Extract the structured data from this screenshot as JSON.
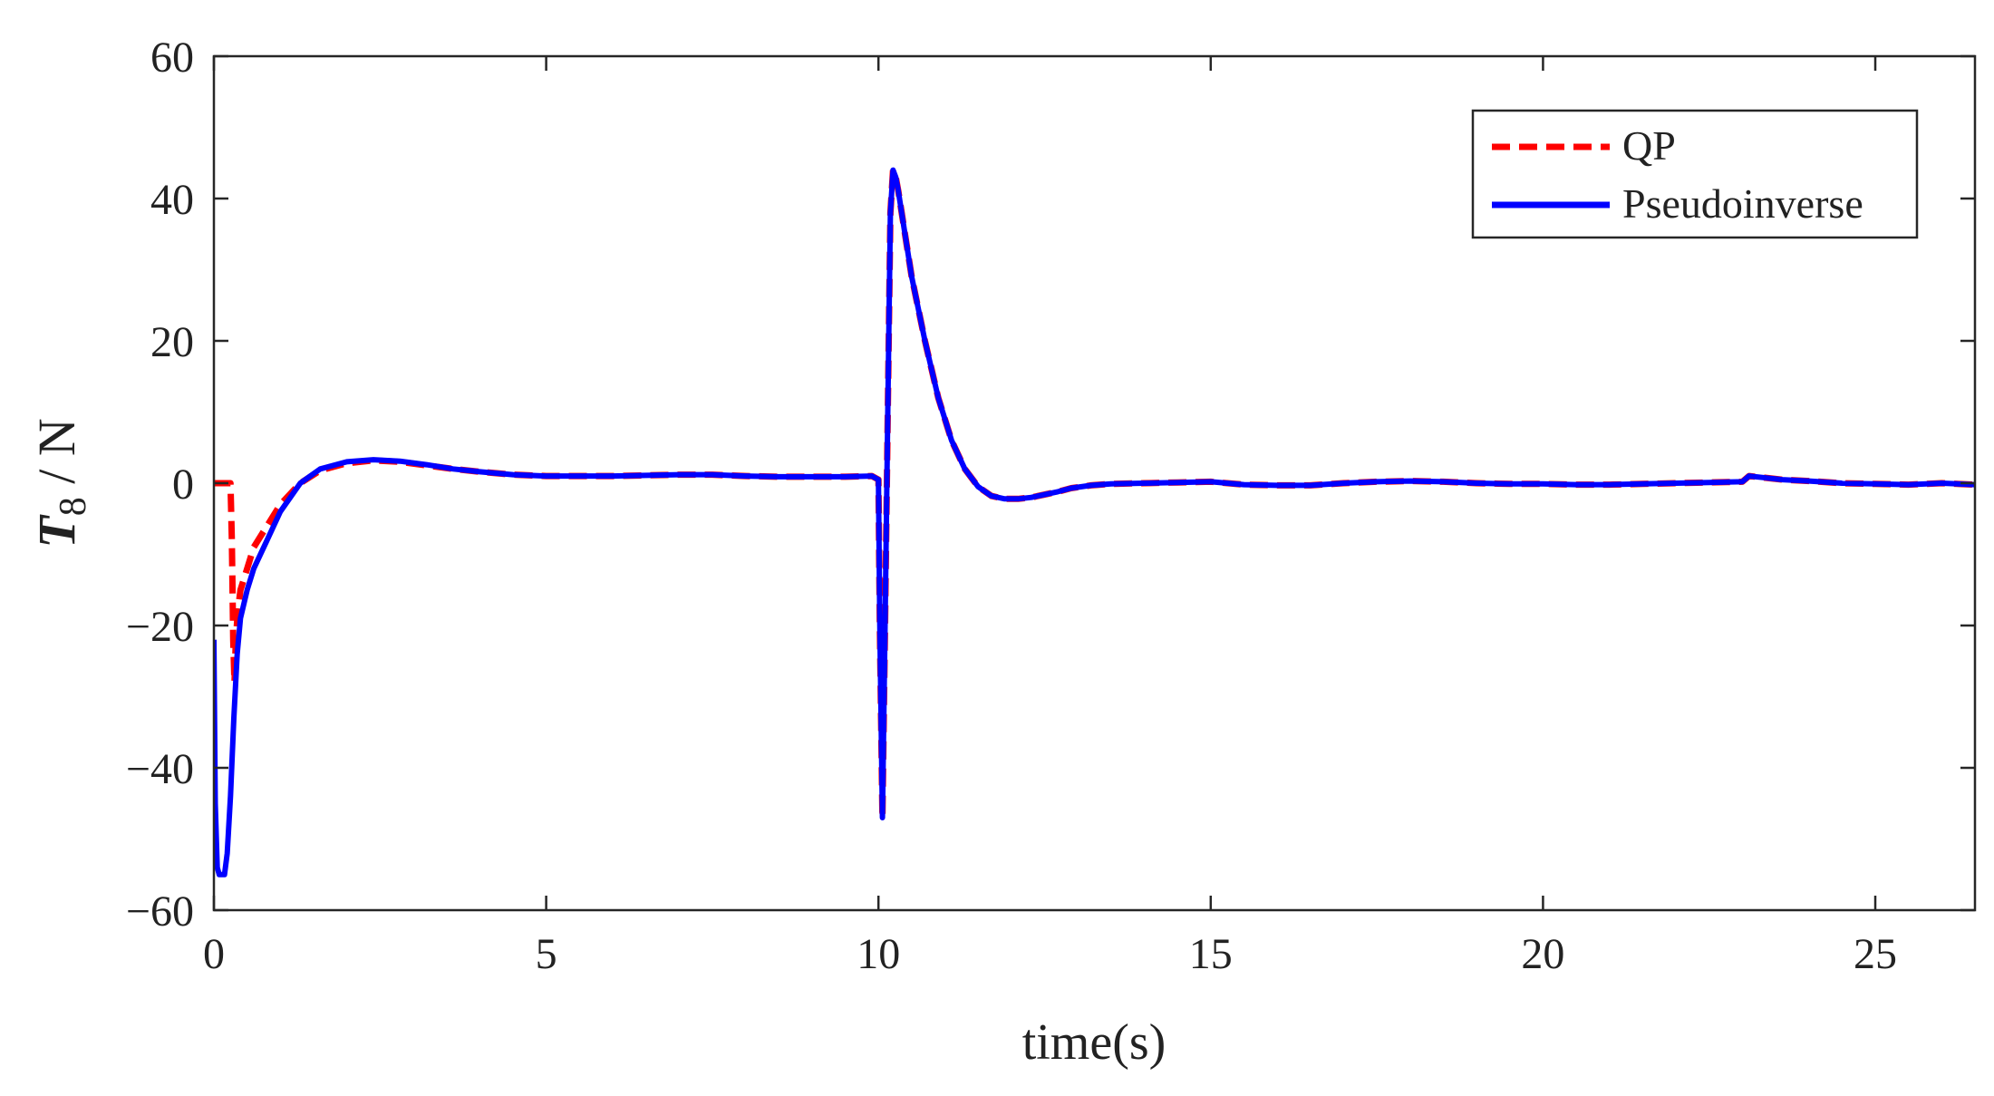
{
  "chart_data": {
    "type": "line",
    "title": "",
    "xlabel": "time(s)",
    "ylabel": {
      "symbol": "T",
      "subscript": "8",
      "unit": " / N"
    },
    "xlim": [
      0,
      26.5
    ],
    "ylim": [
      -60,
      60
    ],
    "xticks": [
      0,
      5,
      10,
      15,
      20,
      25
    ],
    "yticks": [
      -60,
      -40,
      -20,
      0,
      20,
      40,
      60
    ],
    "xtick_labels": [
      "0",
      "5",
      "10",
      "15",
      "20",
      "25"
    ],
    "ytick_labels": [
      "−60",
      "−40",
      "−20",
      "0",
      "20",
      "40",
      "60"
    ],
    "grid": false,
    "legend_position": "top-right",
    "series": [
      {
        "name": "QP",
        "color": "#ff0000",
        "style": "dashed",
        "x": [
          0,
          0.1,
          0.2,
          0.25,
          0.27,
          0.29,
          0.31,
          0.33,
          0.36,
          0.4,
          0.5,
          0.6,
          0.8,
          1.0,
          1.3,
          1.6,
          2.0,
          2.4,
          2.8,
          3.2,
          3.6,
          4.0,
          4.5,
          5.0,
          5.5,
          6.0,
          6.5,
          7.0,
          7.5,
          8.0,
          8.5,
          9.0,
          9.5,
          9.9,
          10.0,
          10.02,
          10.06,
          10.1,
          10.14,
          10.18,
          10.22,
          10.26,
          10.3,
          10.4,
          10.5,
          10.7,
          10.9,
          11.1,
          11.3,
          11.5,
          11.7,
          11.9,
          12.1,
          12.3,
          12.5,
          12.7,
          12.9,
          13.2,
          13.5,
          14.0,
          14.5,
          15.0,
          15.5,
          16.0,
          16.5,
          17.0,
          17.5,
          18.0,
          18.5,
          19.0,
          19.5,
          20.0,
          20.5,
          21.0,
          21.5,
          22.0,
          22.5,
          23.0,
          23.1,
          23.3,
          23.6,
          24.0,
          24.5,
          25.0,
          25.5,
          26.0,
          26.5
        ],
        "y": [
          0,
          0,
          0,
          0,
          -8,
          -22,
          -28,
          -22,
          -18,
          -15,
          -12,
          -9,
          -6,
          -3,
          0,
          1.8,
          2.8,
          3.2,
          3.0,
          2.5,
          2.0,
          1.6,
          1.2,
          1.0,
          1.0,
          1.0,
          1.1,
          1.2,
          1.2,
          1.0,
          0.9,
          0.9,
          0.9,
          1.0,
          0.5,
          -20,
          -47,
          -20,
          10,
          38,
          44,
          43,
          41,
          35,
          29,
          20,
          12,
          6,
          2,
          -0.5,
          -1.8,
          -2.2,
          -2.2,
          -2.0,
          -1.6,
          -1.2,
          -0.7,
          -0.3,
          -0.1,
          0,
          0.1,
          0.2,
          -0.2,
          -0.3,
          -0.3,
          0,
          0.2,
          0.3,
          0.2,
          0,
          -0.1,
          -0.1,
          -0.2,
          -0.2,
          -0.1,
          0,
          0.1,
          0.2,
          1.0,
          0.8,
          0.5,
          0.3,
          0,
          -0.1,
          -0.2,
          0,
          -0.2
        ]
      },
      {
        "name": "Pseudoinverse",
        "color": "#0000ff",
        "style": "solid",
        "x": [
          0,
          0.02,
          0.05,
          0.08,
          0.12,
          0.16,
          0.2,
          0.25,
          0.3,
          0.35,
          0.4,
          0.5,
          0.6,
          0.8,
          1.0,
          1.3,
          1.6,
          2.0,
          2.4,
          2.8,
          3.2,
          3.6,
          4.0,
          4.5,
          5.0,
          5.5,
          6.0,
          6.5,
          7.0,
          7.5,
          8.0,
          8.5,
          9.0,
          9.5,
          9.9,
          10.0,
          10.02,
          10.06,
          10.1,
          10.14,
          10.18,
          10.22,
          10.26,
          10.3,
          10.4,
          10.5,
          10.7,
          10.9,
          11.1,
          11.3,
          11.5,
          11.7,
          11.9,
          12.1,
          12.3,
          12.5,
          12.7,
          12.9,
          13.2,
          13.5,
          14.0,
          14.5,
          15.0,
          15.5,
          16.0,
          16.5,
          17.0,
          17.5,
          18.0,
          18.5,
          19.0,
          19.5,
          20.0,
          20.5,
          21.0,
          21.5,
          22.0,
          22.5,
          23.0,
          23.1,
          23.3,
          23.6,
          24.0,
          24.5,
          25.0,
          25.5,
          26.0,
          26.5
        ],
        "y": [
          -22,
          -45,
          -54,
          -55,
          -55,
          -55,
          -52,
          -44,
          -33,
          -24,
          -19,
          -15,
          -12,
          -8,
          -4,
          0,
          2,
          3,
          3.3,
          3.1,
          2.6,
          2.0,
          1.6,
          1.2,
          1.0,
          1.0,
          1.0,
          1.1,
          1.2,
          1.2,
          1.0,
          0.9,
          0.9,
          0.9,
          1.0,
          0.5,
          -20,
          -47,
          -20,
          10,
          38,
          44,
          43,
          41,
          35,
          29,
          20,
          12,
          6,
          2,
          -0.5,
          -1.8,
          -2.2,
          -2.2,
          -2.0,
          -1.6,
          -1.2,
          -0.7,
          -0.3,
          -0.1,
          0,
          0.1,
          0.2,
          -0.2,
          -0.3,
          -0.3,
          0,
          0.2,
          0.3,
          0.2,
          0,
          -0.1,
          -0.1,
          -0.2,
          -0.2,
          -0.1,
          0,
          0.1,
          0.2,
          1.0,
          0.8,
          0.5,
          0.3,
          0,
          -0.1,
          -0.2,
          0,
          -0.2
        ]
      }
    ]
  }
}
